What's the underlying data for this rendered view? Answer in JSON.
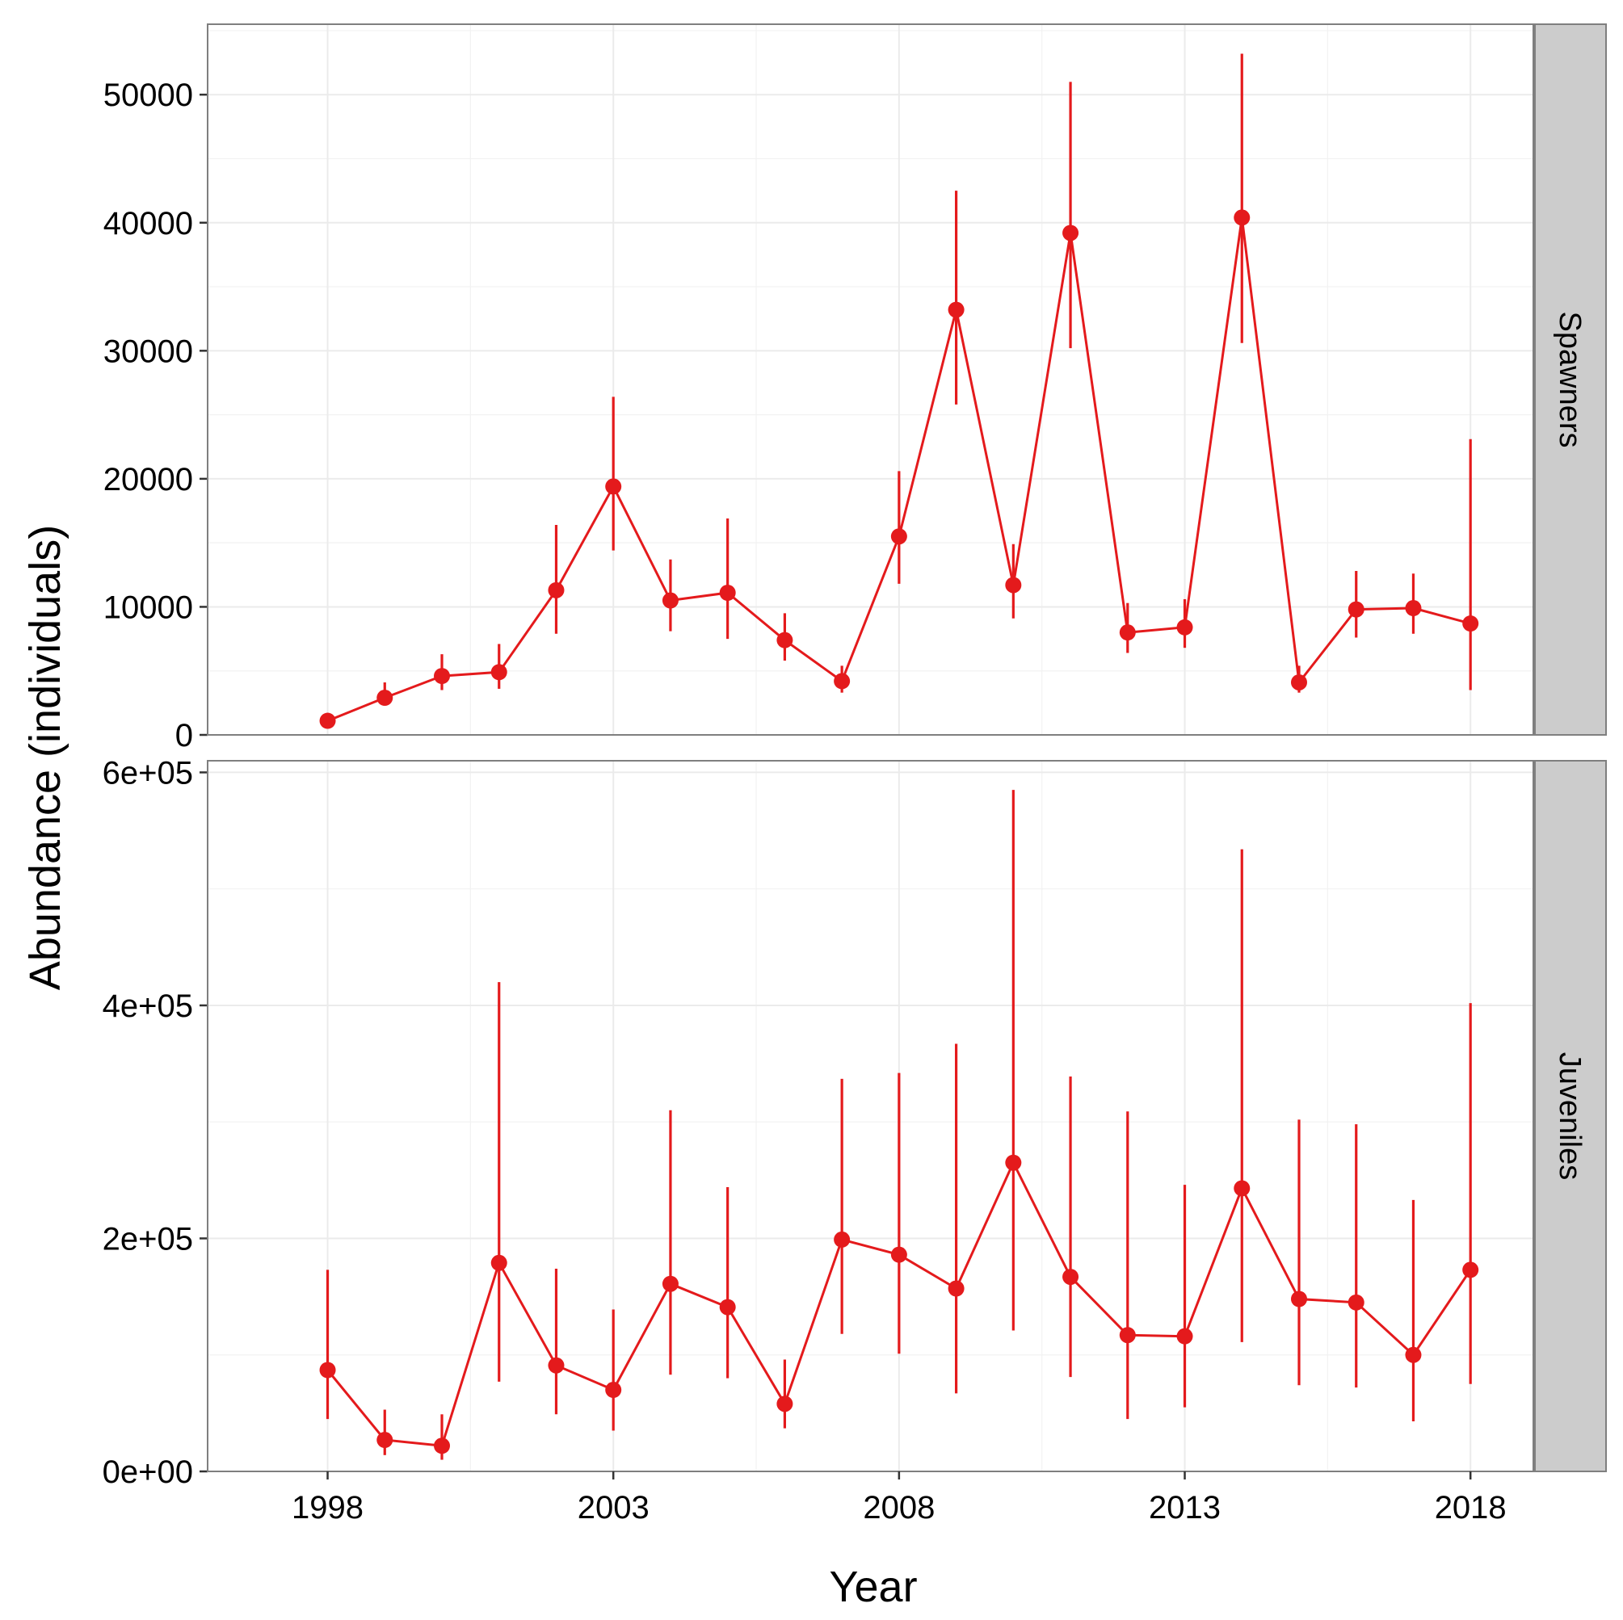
{
  "chart_data": {
    "type": "line",
    "faceted": true,
    "xlabel": "Year",
    "ylabel": "Abundance (individuals)",
    "x": [
      1998,
      1999,
      2000,
      2001,
      2002,
      2003,
      2004,
      2005,
      2006,
      2007,
      2008,
      2009,
      2010,
      2011,
      2012,
      2013,
      2014,
      2015,
      2016,
      2017,
      2018
    ],
    "xlim": [
      1995.9,
      2019.1
    ],
    "x_ticks": [
      1998,
      2003,
      2008,
      2013,
      2018
    ],
    "x_tick_labels": [
      "1998",
      "2003",
      "2008",
      "2013",
      "2018"
    ],
    "color": "#e41a1c",
    "grid": true,
    "facet_strip_position": "right",
    "panels": [
      {
        "label": "Spawners",
        "ylim": [
          0,
          55500
        ],
        "y_ticks": [
          0,
          10000,
          20000,
          30000,
          40000,
          50000
        ],
        "y_tick_labels": [
          "0",
          "10000",
          "20000",
          "30000",
          "40000",
          "50000"
        ],
        "values": [
          1100,
          2900,
          4600,
          4900,
          11300,
          19400,
          10500,
          11100,
          7400,
          4200,
          15500,
          33200,
          11700,
          39200,
          8000,
          8400,
          40400,
          4100,
          9800,
          9900,
          8700
        ],
        "lower": [
          900,
          2300,
          3500,
          3600,
          7900,
          14400,
          8100,
          7500,
          5800,
          3300,
          11800,
          25800,
          9100,
          30200,
          6400,
          6800,
          30600,
          3300,
          7600,
          7900,
          3500
        ],
        "upper": [
          1300,
          4100,
          6300,
          7100,
          16400,
          26400,
          13700,
          16900,
          9500,
          5400,
          20600,
          42500,
          14900,
          51000,
          10300,
          10600,
          53200,
          5400,
          12800,
          12600,
          23100
        ]
      },
      {
        "label": "Juveniles",
        "ylim": [
          0,
          610000
        ],
        "y_ticks": [
          0,
          200000,
          400000,
          600000
        ],
        "y_tick_labels": [
          "0e+00",
          "2e+05",
          "4e+05",
          "6e+05"
        ],
        "values": [
          87000,
          27000,
          22000,
          179000,
          91000,
          70000,
          161000,
          141000,
          58000,
          199000,
          186000,
          157000,
          265000,
          167000,
          117000,
          116000,
          243000,
          148000,
          145000,
          100000,
          173000
        ],
        "lower": [
          45000,
          14000,
          10000,
          77000,
          49000,
          35000,
          83000,
          80000,
          37000,
          118000,
          101000,
          67000,
          121000,
          81000,
          45000,
          55000,
          111000,
          74000,
          72000,
          43000,
          75000
        ],
        "upper": [
          173000,
          53000,
          49000,
          420000,
          174000,
          139000,
          310000,
          244000,
          96000,
          337000,
          342000,
          367000,
          585000,
          339000,
          309000,
          246000,
          534000,
          302000,
          298000,
          233000,
          402000
        ]
      }
    ]
  }
}
